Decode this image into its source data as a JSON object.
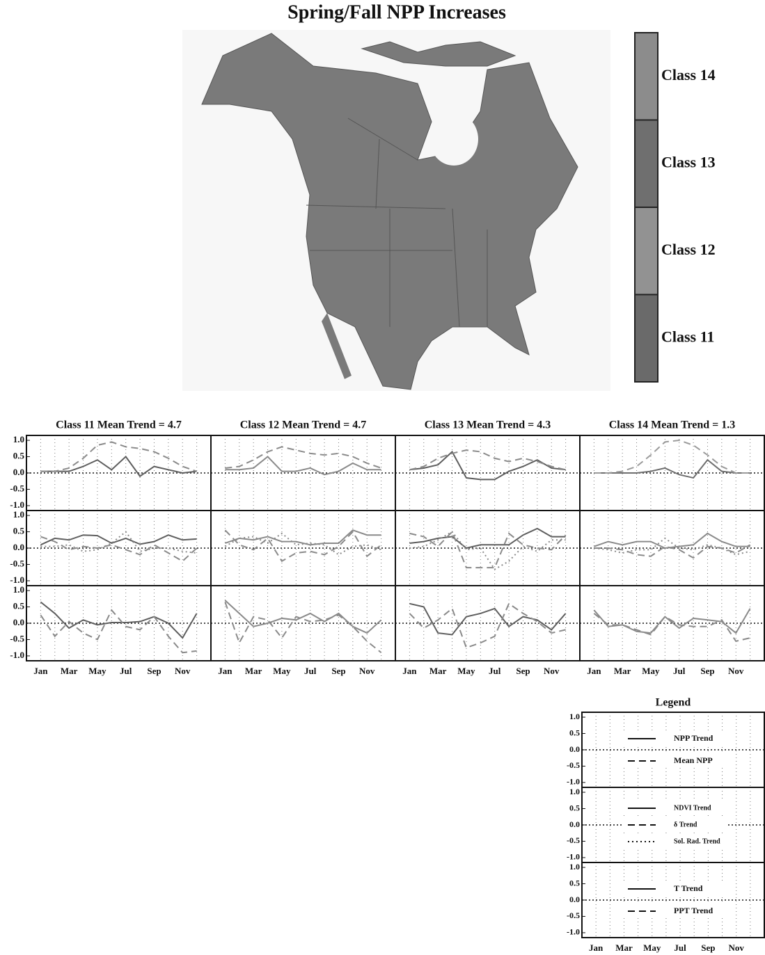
{
  "title": "Spring/Fall NPP Increases",
  "colorbar": {
    "classes": [
      {
        "label": "Class 14",
        "color": "#8c8c8c"
      },
      {
        "label": "Class 13",
        "color": "#6f6f6f"
      },
      {
        "label": "Class 12",
        "color": "#929292"
      },
      {
        "label": "Class 11",
        "color": "#6a6a6a"
      }
    ]
  },
  "chart_data": [
    {
      "type": "line",
      "title": "Class 11  Mean Trend =  4.7",
      "ylim": [
        -1.15,
        1.15
      ],
      "yticks": [
        {
          "value": 1,
          "label": "1.0"
        },
        {
          "value": 0.5,
          "label": "0.5"
        },
        {
          "value": 0,
          "label": "0.0"
        },
        {
          "value": -0.5,
          "label": "-0.5"
        },
        {
          "value": -1,
          "label": "-1.0"
        }
      ],
      "series": [
        {
          "dash": "solid",
          "color": "#5e5e5e",
          "values": [
            0.05,
            0.05,
            0.05,
            0.2,
            0.4,
            0.1,
            0.5,
            -0.1,
            0.2,
            0.1,
            0,
            0.05
          ]
        },
        {
          "dash": "dashed",
          "color": "#8a8a8a",
          "values": [
            0.05,
            0.05,
            0.15,
            0.45,
            0.85,
            0.95,
            0.8,
            0.75,
            0.65,
            0.45,
            0.2,
            0.05
          ]
        }
      ]
    },
    {
      "type": "line",
      "title": "Class 12  Mean Trend =  4.7",
      "ylim": [
        -1.15,
        1.15
      ],
      "series": [
        {
          "dash": "solid",
          "color": "#8a8a8a",
          "values": [
            0.1,
            0.1,
            0.15,
            0.5,
            0.05,
            0.05,
            0.15,
            -0.05,
            0.05,
            0.3,
            0.1,
            0.1
          ]
        },
        {
          "dash": "dashed",
          "color": "#8a8a8a",
          "values": [
            0.15,
            0.2,
            0.4,
            0.65,
            0.8,
            0.7,
            0.6,
            0.55,
            0.6,
            0.5,
            0.3,
            0.15
          ]
        }
      ]
    },
    {
      "type": "line",
      "title": "Class 13  Mean Trend =  4.3",
      "ylim": [
        -1.15,
        1.15
      ],
      "series": [
        {
          "dash": "solid",
          "color": "#5e5e5e",
          "values": [
            0.1,
            0.15,
            0.25,
            0.65,
            -0.15,
            -0.2,
            -0.2,
            0.05,
            0.2,
            0.4,
            0.15,
            0.1
          ]
        },
        {
          "dash": "dashed",
          "color": "#8a8a8a",
          "values": [
            0.1,
            0.2,
            0.45,
            0.6,
            0.7,
            0.65,
            0.45,
            0.35,
            0.45,
            0.35,
            0.2,
            0.1
          ]
        }
      ]
    },
    {
      "type": "line",
      "title": "Class 14  Mean Trend =  1.3",
      "ylim": [
        -1.15,
        1.15
      ],
      "series": [
        {
          "dash": "solid",
          "color": "#6e6e6e",
          "values": [
            0,
            0,
            0,
            0,
            0.05,
            0.15,
            -0.05,
            -0.15,
            0.4,
            0.05,
            0,
            0
          ]
        },
        {
          "dash": "dashed",
          "color": "#9a9a9a",
          "values": [
            0,
            0,
            0.05,
            0.2,
            0.55,
            0.95,
            1.0,
            0.85,
            0.55,
            0.2,
            0,
            0
          ]
        }
      ]
    },
    {
      "type": "line",
      "ylim": [
        -1.15,
        1.15
      ],
      "yticks": [
        {
          "value": 1,
          "label": "1.0"
        },
        {
          "value": 0.5,
          "label": "0.5"
        },
        {
          "value": 0,
          "label": "0.0"
        },
        {
          "value": -0.5,
          "label": "-0.5"
        },
        {
          "value": -1,
          "label": "-1.0"
        }
      ],
      "series": [
        {
          "dash": "solid",
          "color": "#5e5e5e",
          "values": [
            0.1,
            0.3,
            0.25,
            0.4,
            0.38,
            0.15,
            0.3,
            0.12,
            0.2,
            0.4,
            0.25,
            0.28
          ]
        },
        {
          "dash": "dashed",
          "color": "#8a8a8a",
          "values": [
            0.35,
            0.2,
            -0.05,
            0.05,
            0,
            0.1,
            -0.05,
            -0.2,
            0.1,
            -0.15,
            -0.4,
            0
          ]
        },
        {
          "dash": "dotted",
          "color": "#8a8a8a",
          "values": [
            0.05,
            0.05,
            0.1,
            -0.1,
            -0.05,
            0.15,
            0.5,
            -0.1,
            0,
            0,
            -0.1,
            -0.15
          ]
        }
      ]
    },
    {
      "type": "line",
      "ylim": [
        -1.15,
        1.15
      ],
      "series": [
        {
          "dash": "solid",
          "color": "#8a8a8a",
          "values": [
            0.15,
            0.3,
            0.25,
            0.35,
            0.2,
            0.2,
            0.1,
            0.15,
            0.15,
            0.55,
            0.4,
            0.4
          ]
        },
        {
          "dash": "dashed",
          "color": "#8a8a8a",
          "values": [
            0.55,
            0.1,
            -0.05,
            0.3,
            -0.4,
            -0.15,
            -0.1,
            -0.2,
            0.05,
            0.5,
            -0.25,
            0.1
          ]
        },
        {
          "dash": "dotted",
          "color": "#8a8a8a",
          "values": [
            0.05,
            0.3,
            0.35,
            0.15,
            0.45,
            0.1,
            0.15,
            0.1,
            -0.2,
            0.05,
            0.1,
            -0.05
          ]
        }
      ]
    },
    {
      "type": "line",
      "ylim": [
        -1.15,
        1.15
      ],
      "series": [
        {
          "dash": "solid",
          "color": "#5e5e5e",
          "values": [
            0.15,
            0.2,
            0.3,
            0.35,
            0,
            0.1,
            0.1,
            0.1,
            0.4,
            0.6,
            0.35,
            0.35
          ]
        },
        {
          "dash": "dashed",
          "color": "#8a8a8a",
          "values": [
            0.45,
            0.35,
            0.05,
            0.5,
            -0.6,
            -0.6,
            -0.6,
            0.45,
            0.1,
            0,
            -0.05,
            0.4
          ]
        },
        {
          "dash": "dotted",
          "color": "#8a8a8a",
          "values": [
            0,
            0.05,
            0.25,
            0.5,
            -0.05,
            0,
            -0.65,
            -0.4,
            0.05,
            -0.1,
            0.25,
            0.25
          ]
        }
      ]
    },
    {
      "type": "line",
      "ylim": [
        -1.15,
        1.15
      ],
      "series": [
        {
          "dash": "solid",
          "color": "#8a8a8a",
          "values": [
            0.05,
            0.2,
            0.1,
            0.2,
            0.2,
            0,
            0.05,
            0.1,
            0.45,
            0.2,
            0.05,
            0.05
          ]
        },
        {
          "dash": "dashed",
          "color": "#8a8a8a",
          "values": [
            0,
            0,
            -0.05,
            -0.2,
            -0.25,
            0.05,
            -0.05,
            -0.3,
            0.05,
            0,
            -0.15,
            0.1
          ]
        },
        {
          "dash": "dotted",
          "color": "#8a8a8a",
          "values": [
            0,
            -0.05,
            -0.15,
            -0.05,
            -0.05,
            0.3,
            0,
            -0.05,
            0.1,
            0,
            -0.2,
            -0.1
          ]
        }
      ]
    },
    {
      "type": "line",
      "ylim": [
        -1.15,
        1.15
      ],
      "yticks": [
        {
          "value": 1,
          "label": "1.0"
        },
        {
          "value": 0.5,
          "label": "0.5"
        },
        {
          "value": 0,
          "label": "0.0"
        },
        {
          "value": -0.5,
          "label": "-0.5"
        },
        {
          "value": -1,
          "label": "-1.0"
        }
      ],
      "categories": [
        "Jan",
        null,
        "Mar",
        null,
        "May",
        null,
        "Jul",
        null,
        "Sep",
        null,
        "Nov",
        null
      ],
      "series": [
        {
          "dash": "solid",
          "color": "#5e5e5e",
          "values": [
            0.65,
            0.3,
            -0.15,
            0.1,
            -0.05,
            0.02,
            0.02,
            0.05,
            0.2,
            0,
            -0.45,
            0.3
          ]
        },
        {
          "dash": "dashed",
          "color": "#8a8a8a",
          "values": [
            0.25,
            -0.4,
            0.05,
            -0.3,
            -0.5,
            0.4,
            -0.1,
            -0.2,
            0.2,
            -0.4,
            -0.9,
            -0.85
          ]
        }
      ]
    },
    {
      "type": "line",
      "ylim": [
        -1.15,
        1.15
      ],
      "categories": [
        "Jan",
        null,
        "Mar",
        null,
        "May",
        null,
        "Jul",
        null,
        "Sep",
        null,
        "Nov",
        null
      ],
      "series": [
        {
          "dash": "solid",
          "color": "#8a8a8a",
          "values": [
            0.7,
            0.3,
            -0.1,
            0,
            0.15,
            0.1,
            0.3,
            0.05,
            0.3,
            -0.1,
            -0.3,
            0.1
          ]
        },
        {
          "dash": "dashed",
          "color": "#8a8a8a",
          "values": [
            0.65,
            -0.6,
            0.2,
            0.1,
            -0.45,
            0.2,
            0.05,
            0.1,
            0.25,
            -0.1,
            -0.55,
            -0.9
          ]
        }
      ]
    },
    {
      "type": "line",
      "ylim": [
        -1.15,
        1.15
      ],
      "categories": [
        "Jan",
        null,
        "Mar",
        null,
        "May",
        null,
        "Jul",
        null,
        "Sep",
        null,
        "Nov",
        null
      ],
      "series": [
        {
          "dash": "solid",
          "color": "#5e5e5e",
          "values": [
            0.6,
            0.5,
            -0.3,
            -0.35,
            0.2,
            0.3,
            0.45,
            -0.1,
            0.2,
            0.1,
            -0.2,
            0.3
          ]
        },
        {
          "dash": "dashed",
          "color": "#8a8a8a",
          "values": [
            0.3,
            -0.15,
            0.1,
            0.45,
            -0.75,
            -0.6,
            -0.4,
            0.6,
            0.3,
            0.05,
            -0.3,
            -0.2
          ]
        }
      ]
    },
    {
      "type": "line",
      "ylim": [
        -1.15,
        1.15
      ],
      "categories": [
        "Jan",
        null,
        "Mar",
        null,
        "May",
        null,
        "Jul",
        null,
        "Sep",
        null,
        "Nov",
        null
      ],
      "series": [
        {
          "dash": "solid",
          "color": "#8a8a8a",
          "values": [
            0.4,
            -0.1,
            -0.05,
            -0.25,
            -0.3,
            0.2,
            -0.15,
            0.15,
            0.1,
            0.05,
            -0.3,
            0.45
          ]
        },
        {
          "dash": "dashed",
          "color": "#8a8a8a",
          "values": [
            0.3,
            -0.05,
            -0.05,
            -0.2,
            -0.35,
            0.2,
            -0.05,
            -0.1,
            -0.1,
            0.1,
            -0.55,
            -0.45
          ]
        }
      ]
    }
  ],
  "legend": {
    "title": "Legend",
    "ylim": [
      -1.15,
      1.15
    ],
    "yticks": [
      {
        "value": 1,
        "label": "1.0"
      },
      {
        "value": 0.5,
        "label": "0.5"
      },
      {
        "value": 0,
        "label": "0.0"
      },
      {
        "value": -0.5,
        "label": "-0.5"
      },
      {
        "value": -1,
        "label": "-1.0"
      }
    ],
    "categories": [
      "Jan",
      null,
      "Mar",
      null,
      "May",
      null,
      "Jul",
      null,
      "Sep",
      null,
      "Nov",
      null
    ],
    "panels": [
      {
        "entries": [
          {
            "name": "NPP Trend",
            "dash": "solid"
          },
          {
            "name": "Mean NPP",
            "dash": "dashed"
          }
        ]
      },
      {
        "entries": [
          {
            "name": "NDVI Trend",
            "dash": "solid"
          },
          {
            "name": "δ Trend",
            "dash": "dashed"
          },
          {
            "name": "Sol. Rad. Trend",
            "dash": "dotted"
          }
        ]
      },
      {
        "entries": [
          {
            "name": "T Trend",
            "dash": "solid"
          },
          {
            "name": "PPT Trend",
            "dash": "dashed"
          }
        ]
      }
    ]
  }
}
